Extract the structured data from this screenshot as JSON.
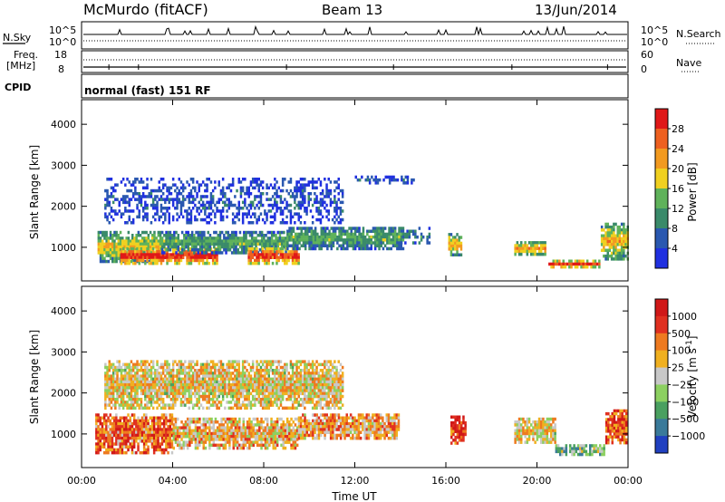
{
  "header": {
    "station": "McMurdo (fitACF)",
    "beam": "Beam 13",
    "date": "13/Jun/2014"
  },
  "aux_panels": {
    "nsky_label": "N.Sky",
    "nsky_ticks": [
      "10^5",
      "10^0"
    ],
    "nsearch_label": "N.Search",
    "nsearch_ticks": [
      "10^5",
      "10^0"
    ],
    "freq_label_line1": "Freq.",
    "freq_label_line2": "[MHz]",
    "freq_ticks": [
      "18",
      "8"
    ],
    "nave_label": "Nave",
    "nave_ticks": [
      "60",
      "0"
    ],
    "cpid_label": "CPID",
    "cpid_value": "normal (fast) 151 RF"
  },
  "chart_data": [
    {
      "type": "heatmap",
      "name": "power",
      "ylabel": "Slant Range [km]",
      "ylim": [
        180,
        4600
      ],
      "yticks": [
        "4000",
        "3000",
        "2000",
        "1000"
      ],
      "xlim_hours": [
        0,
        24
      ],
      "colorbar": {
        "label": "Power [dB]",
        "ticks": [
          "28",
          "24",
          "20",
          "16",
          "12",
          "8",
          "4"
        ],
        "range": [
          0,
          32
        ],
        "colors": [
          "#2030e0",
          "#2a58b0",
          "#3a8a6a",
          "#5fb25a",
          "#f0d020",
          "#f29a20",
          "#ee6020",
          "#e01818"
        ]
      },
      "scatter_regions_hours_km": [
        {
          "t": [
            0.7,
            3.5
          ],
          "r": [
            650,
            1400
          ],
          "level": 0.5
        },
        {
          "t": [
            1.7,
            6.0
          ],
          "r": [
            550,
            1000
          ],
          "level": 0.85
        },
        {
          "t": [
            3.5,
            9.0
          ],
          "r": [
            800,
            1400
          ],
          "level": 0.35
        },
        {
          "t": [
            7.3,
            9.6
          ],
          "r": [
            550,
            1000
          ],
          "level": 0.8
        },
        {
          "t": [
            9.0,
            14.2
          ],
          "r": [
            900,
            1500
          ],
          "level": 0.35
        },
        {
          "t": [
            14.0,
            15.3
          ],
          "r": [
            1050,
            1500
          ],
          "level": 0.25
        },
        {
          "t": [
            16.1,
            16.7
          ],
          "r": [
            750,
            1350
          ],
          "level": 0.55
        },
        {
          "t": [
            19.0,
            20.4
          ],
          "r": [
            800,
            1150
          ],
          "level": 0.6
        },
        {
          "t": [
            20.5,
            22.8
          ],
          "r": [
            500,
            700
          ],
          "level": 0.75
        },
        {
          "t": [
            22.8,
            24.0
          ],
          "r": [
            700,
            1600
          ],
          "level": 0.55
        },
        {
          "t": [
            1.0,
            11.5
          ],
          "r": [
            1600,
            2700
          ],
          "level": 0.15
        },
        {
          "t": [
            12.0,
            14.6
          ],
          "r": [
            2550,
            2750
          ],
          "level": 0.15
        }
      ]
    },
    {
      "type": "heatmap",
      "name": "velocity",
      "ylabel": "Slant Range [km]",
      "ylim": [
        180,
        4600
      ],
      "yticks": [
        "4000",
        "3000",
        "2000",
        "1000"
      ],
      "xlim_hours": [
        0,
        24
      ],
      "xticks": [
        "00:00",
        "04:00",
        "08:00",
        "12:00",
        "16:00",
        "20:00",
        "00:00"
      ],
      "xlabel": "Time UT",
      "colorbar": {
        "label_main": "Velocity [m s",
        "label_sup": "-1",
        "label_end": "]",
        "ticks": [
          "1000",
          "500",
          "100",
          "25",
          "−25",
          "−100",
          "−500",
          "−1000"
        ],
        "colors": [
          "#2040c0",
          "#3a7a9a",
          "#4aa060",
          "#8cd060",
          "#c8c8c8",
          "#f0b020",
          "#ee7a20",
          "#e03020",
          "#d01818"
        ]
      },
      "scatter_regions_hours_km": [
        {
          "t": [
            0.6,
            4.0
          ],
          "r": [
            500,
            1500
          ],
          "level": 0.75
        },
        {
          "t": [
            4.0,
            9.5
          ],
          "r": [
            600,
            1400
          ],
          "level": 0.6
        },
        {
          "t": [
            9.5,
            14.0
          ],
          "r": [
            850,
            1500
          ],
          "level": 0.65
        },
        {
          "t": [
            16.2,
            16.9
          ],
          "r": [
            750,
            1450
          ],
          "level": 0.85
        },
        {
          "t": [
            19.0,
            20.8
          ],
          "r": [
            750,
            1400
          ],
          "level": 0.55
        },
        {
          "t": [
            20.8,
            23.0
          ],
          "r": [
            500,
            750
          ],
          "level": 0.35
        },
        {
          "t": [
            23.0,
            24.0
          ],
          "r": [
            750,
            1600
          ],
          "level": 0.8
        },
        {
          "t": [
            1.0,
            11.5
          ],
          "r": [
            1600,
            2800
          ],
          "level": 0.55
        }
      ]
    }
  ]
}
